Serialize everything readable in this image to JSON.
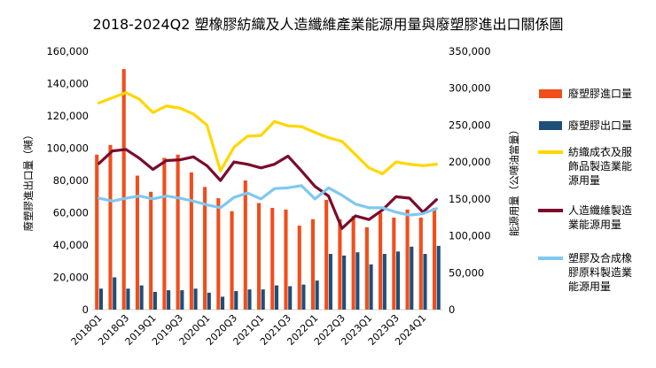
{
  "chart_data": {
    "type": "bar",
    "title": "2018-2024Q2  塑橡膠紡織及人造纖維產業能源用量與廢塑膠進出口關係圖",
    "ylabel": "廢塑膠進出口量（噸）",
    "y2label": "能源用量（公噸油當量）",
    "ylim": [
      0,
      160000
    ],
    "y2lim": [
      0,
      350000
    ],
    "yticks": [
      "0",
      "20,000",
      "40,000",
      "60,000",
      "80,000",
      "100,000",
      "120,000",
      "140,000",
      "160,000"
    ],
    "y2ticks": [
      "0",
      "50,000",
      "100,000",
      "150,000",
      "200,000",
      "250,000",
      "300,000",
      "350,000"
    ],
    "categories": [
      "2018Q1",
      "2018Q2",
      "2018Q3",
      "2018Q4",
      "2019Q1",
      "2019Q2",
      "2019Q3",
      "2019Q4",
      "2020Q1",
      "2020Q2",
      "2020Q3",
      "2020Q4",
      "2021Q1",
      "2021Q2",
      "2021Q3",
      "2021Q4",
      "2022Q1",
      "2022Q2",
      "2022Q3",
      "2022Q4",
      "2023Q1",
      "2023Q2",
      "2023Q3",
      "2023Q4",
      "2024Q1",
      "2024Q2"
    ],
    "xtick_labels": [
      "2018Q1",
      "2018Q3",
      "2019Q1",
      "2019Q3",
      "2020Q1",
      "2020Q3",
      "2021Q1",
      "2021Q3",
      "2022Q1",
      "2022Q3",
      "2023Q1",
      "2023Q3",
      "2024Q1"
    ],
    "bar_series": [
      {
        "name": "廢塑膠進口量",
        "color": "#f04e1c",
        "axis": "left",
        "values": [
          96000,
          102000,
          149000,
          83000,
          73000,
          94000,
          96000,
          85000,
          76000,
          69000,
          61000,
          80000,
          66000,
          63000,
          62000,
          52000,
          56000,
          68000,
          56000,
          58000,
          51000,
          60000,
          57000,
          62000,
          57000,
          63000
        ]
      },
      {
        "name": "廢塑膠出口量",
        "color": "#1f4e79",
        "axis": "left",
        "values": [
          13000,
          20000,
          13000,
          15000,
          11000,
          12000,
          12000,
          13000,
          10500,
          8000,
          11500,
          12500,
          12500,
          15000,
          14500,
          15500,
          18000,
          34500,
          33500,
          35500,
          28000,
          34500,
          36000,
          39000,
          34500,
          39500
        ]
      }
    ],
    "line_series": [
      {
        "name": "紡織成衣及服飾品製造業能源用量",
        "color": "#ffd700",
        "axis": "right",
        "values": [
          280000,
          287000,
          294000,
          285000,
          267000,
          276000,
          273000,
          265000,
          250000,
          188000,
          220000,
          235000,
          236000,
          255000,
          249000,
          248000,
          240000,
          233000,
          228000,
          210000,
          192000,
          184000,
          200000,
          197000,
          195000,
          197000
        ]
      },
      {
        "name": "人造纖維製造業能源用量",
        "color": "#7b0c2b",
        "axis": "right",
        "values": [
          198000,
          215000,
          217000,
          205000,
          190000,
          202000,
          203000,
          207000,
          195000,
          175000,
          200000,
          197000,
          192000,
          197000,
          208000,
          188000,
          167000,
          154000,
          110000,
          127000,
          122000,
          135000,
          153000,
          151000,
          132000,
          149000
        ]
      },
      {
        "name": "塑膠及合成橡膠原料製造業能源用量",
        "color": "#7ec8f2",
        "axis": "right",
        "values": [
          151000,
          147000,
          151000,
          154000,
          150000,
          154000,
          151000,
          147000,
          142000,
          138000,
          152000,
          158000,
          150000,
          164000,
          165000,
          168000,
          150000,
          165000,
          155000,
          143000,
          138000,
          138000,
          132000,
          128000,
          130000,
          137000
        ]
      }
    ],
    "legend": [
      {
        "name": "廢塑膠進口量",
        "lines": [
          "廢塑膠進口量"
        ],
        "color": "#f04e1c",
        "kind": "bar"
      },
      {
        "name": "廢塑膠出口量",
        "lines": [
          "廢塑膠出口量"
        ],
        "color": "#1f4e79",
        "kind": "bar"
      },
      {
        "name": "紡織成衣及服飾品製造業能源用量",
        "lines": [
          "紡織成衣及服",
          "飾品製造業能",
          "源用量"
        ],
        "color": "#ffd700",
        "kind": "line"
      },
      {
        "name": "人造纖維製造業能源用量",
        "lines": [
          "人造纖維製造",
          "業能源用量"
        ],
        "color": "#7b0c2b",
        "kind": "line"
      },
      {
        "name": "塑膠及合成橡膠原料製造業能源用量",
        "lines": [
          "塑膠及合成橡",
          "膠原料製造業",
          "能源用量"
        ],
        "color": "#7ec8f2",
        "kind": "line"
      }
    ],
    "legend_position": "right"
  }
}
